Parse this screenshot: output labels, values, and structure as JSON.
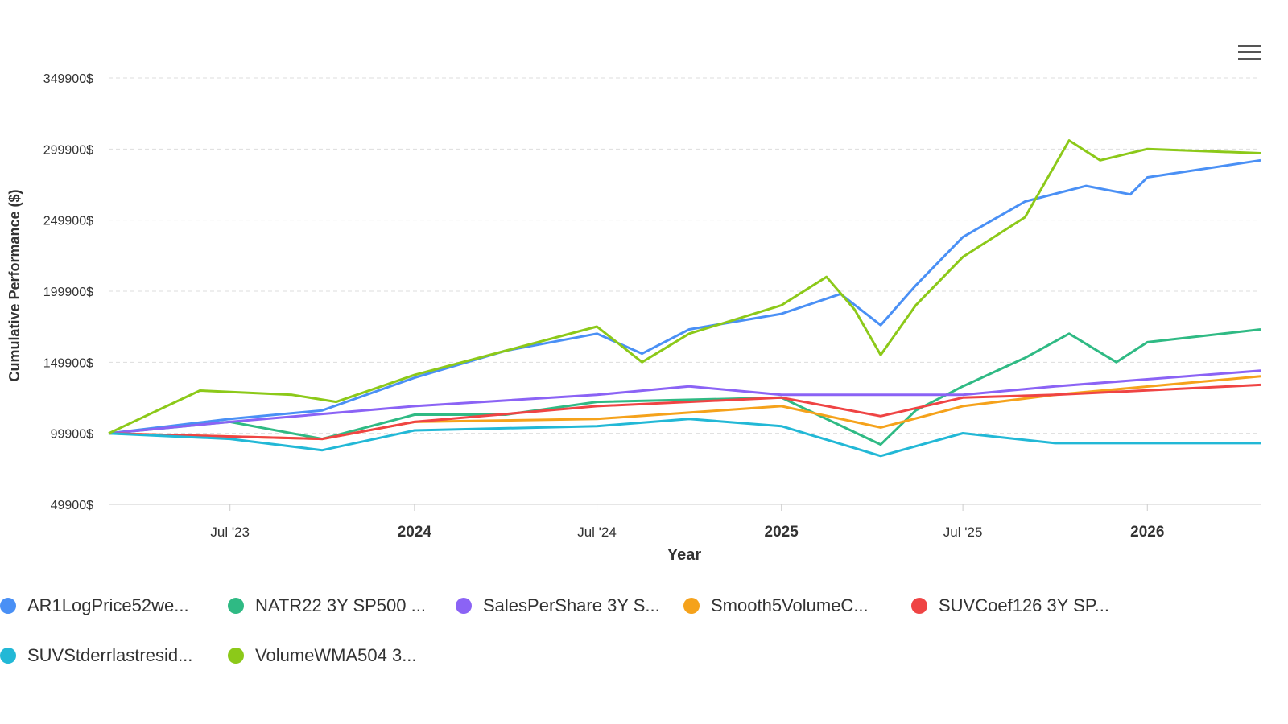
{
  "chart_data": {
    "type": "line",
    "xlabel": "Year",
    "ylabel": "Cumulative Performance ($)",
    "ylim": [
      49900,
      349900
    ],
    "yticks": [
      "349900$",
      "299900$",
      "249900$",
      "199900$",
      "149900$",
      "99900$",
      "49900$"
    ],
    "ytick_values": [
      349900,
      299900,
      249900,
      199900,
      149900,
      99900,
      49900
    ],
    "xlim": [
      "2023-03-02",
      "2026-04-24"
    ],
    "xticks": [
      {
        "label": "Jul '23",
        "date": "2023-07-01",
        "bold": false
      },
      {
        "label": "2024",
        "date": "2024-01-01",
        "bold": true
      },
      {
        "label": "Jul '24",
        "date": "2024-07-01",
        "bold": false
      },
      {
        "label": "2025",
        "date": "2025-01-01",
        "bold": true
      },
      {
        "label": "Jul '25",
        "date": "2025-07-01",
        "bold": false
      },
      {
        "label": "2026",
        "date": "2026-01-01",
        "bold": true
      }
    ],
    "grid": true,
    "legend_placement": "bottom",
    "series": [
      {
        "name": "AR1LogPrice52we...",
        "color": "#4a90f5",
        "points": [
          [
            "2023-03-02",
            99900
          ],
          [
            "2023-07-01",
            110000
          ],
          [
            "2023-10-01",
            116000
          ],
          [
            "2024-01-01",
            139000
          ],
          [
            "2024-04-01",
            158000
          ],
          [
            "2024-07-01",
            170000
          ],
          [
            "2024-08-15",
            156000
          ],
          [
            "2024-10-01",
            173000
          ],
          [
            "2025-01-01",
            184000
          ],
          [
            "2025-03-01",
            198000
          ],
          [
            "2025-04-10",
            176000
          ],
          [
            "2025-05-15",
            204000
          ],
          [
            "2025-07-01",
            238000
          ],
          [
            "2025-09-01",
            263000
          ],
          [
            "2025-11-01",
            274000
          ],
          [
            "2025-12-15",
            268000
          ],
          [
            "2026-01-01",
            280000
          ],
          [
            "2026-04-24",
            292000
          ]
        ]
      },
      {
        "name": "NATR22 3Y SP500 ...",
        "color": "#2fba84",
        "points": [
          [
            "2023-03-02",
            99900
          ],
          [
            "2023-07-01",
            108000
          ],
          [
            "2023-10-01",
            96000
          ],
          [
            "2024-01-01",
            113000
          ],
          [
            "2024-04-01",
            113000
          ],
          [
            "2024-07-01",
            122000
          ],
          [
            "2025-01-01",
            125000
          ],
          [
            "2025-04-10",
            92000
          ],
          [
            "2025-05-15",
            116000
          ],
          [
            "2025-07-01",
            133000
          ],
          [
            "2025-09-01",
            153000
          ],
          [
            "2025-10-15",
            170000
          ],
          [
            "2025-12-01",
            150000
          ],
          [
            "2026-01-01",
            164000
          ],
          [
            "2026-04-24",
            173000
          ]
        ]
      },
      {
        "name": "SalesPerShare 3Y S...",
        "color": "#8b63f5",
        "points": [
          [
            "2023-03-02",
            99900
          ],
          [
            "2023-07-01",
            108000
          ],
          [
            "2024-01-01",
            119000
          ],
          [
            "2024-07-01",
            127000
          ],
          [
            "2024-10-01",
            133000
          ],
          [
            "2025-01-01",
            127000
          ],
          [
            "2025-04-01",
            127000
          ],
          [
            "2025-07-01",
            127000
          ],
          [
            "2025-10-01",
            133000
          ],
          [
            "2026-04-24",
            144000
          ]
        ]
      },
      {
        "name": "Smooth5VolumeC...",
        "color": "#f5a21b",
        "points": [
          [
            "2023-03-02",
            99900
          ],
          [
            "2023-10-01",
            96000
          ],
          [
            "2024-01-01",
            108000
          ],
          [
            "2024-07-01",
            110000
          ],
          [
            "2025-01-01",
            119000
          ],
          [
            "2025-04-10",
            104000
          ],
          [
            "2025-07-01",
            119000
          ],
          [
            "2025-10-01",
            127000
          ],
          [
            "2026-04-24",
            140000
          ]
        ]
      },
      {
        "name": "SUVCoef126 3Y SP...",
        "color": "#ef4444",
        "points": [
          [
            "2023-03-02",
            99900
          ],
          [
            "2023-10-01",
            96000
          ],
          [
            "2024-01-01",
            108000
          ],
          [
            "2024-07-01",
            119000
          ],
          [
            "2025-01-01",
            125000
          ],
          [
            "2025-04-10",
            112000
          ],
          [
            "2025-07-01",
            125000
          ],
          [
            "2025-10-01",
            127000
          ],
          [
            "2026-04-24",
            134000
          ]
        ]
      },
      {
        "name": "SUVStderrlastresid...",
        "color": "#22b8d6",
        "points": [
          [
            "2023-03-02",
            99900
          ],
          [
            "2023-07-01",
            96000
          ],
          [
            "2023-10-01",
            88000
          ],
          [
            "2024-01-01",
            102000
          ],
          [
            "2024-07-01",
            105000
          ],
          [
            "2024-10-01",
            110000
          ],
          [
            "2025-01-01",
            105000
          ],
          [
            "2025-04-10",
            84000
          ],
          [
            "2025-07-01",
            100000
          ],
          [
            "2025-10-01",
            93000
          ],
          [
            "2026-04-24",
            93000
          ]
        ]
      },
      {
        "name": "VolumeWMA504 3...",
        "color": "#8cc919",
        "points": [
          [
            "2023-03-02",
            99900
          ],
          [
            "2023-06-01",
            130000
          ],
          [
            "2023-09-01",
            127000
          ],
          [
            "2023-10-15",
            122000
          ],
          [
            "2024-01-01",
            141000
          ],
          [
            "2024-04-01",
            158000
          ],
          [
            "2024-07-01",
            175000
          ],
          [
            "2024-08-15",
            150000
          ],
          [
            "2024-10-01",
            170000
          ],
          [
            "2025-01-01",
            190000
          ],
          [
            "2025-02-15",
            210000
          ],
          [
            "2025-03-15",
            187000
          ],
          [
            "2025-04-10",
            155000
          ],
          [
            "2025-05-15",
            190000
          ],
          [
            "2025-07-01",
            224000
          ],
          [
            "2025-09-01",
            252000
          ],
          [
            "2025-10-15",
            306000
          ],
          [
            "2025-11-15",
            292000
          ],
          [
            "2026-01-01",
            300000
          ],
          [
            "2026-04-24",
            297000
          ]
        ]
      }
    ]
  },
  "toolbar": {
    "menu_icon": "hamburger-menu-icon"
  }
}
